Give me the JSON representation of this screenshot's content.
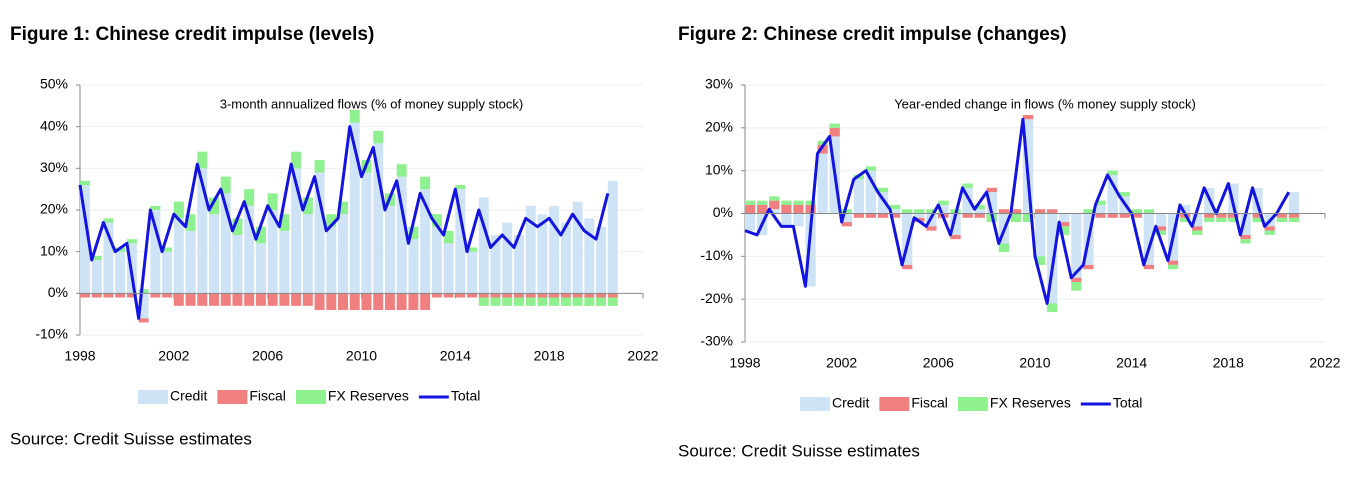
{
  "chart_data": [
    {
      "type": "bar",
      "title": "Figure 1: Chinese credit impulse (levels)",
      "annotation": "3-month annualized flows (% of money supply stock)",
      "source": "Source: Credit Suisse estimates",
      "x": [
        1998,
        1998.5,
        1999,
        1999.5,
        2000,
        2000.5,
        2001,
        2001.5,
        2002,
        2002.5,
        2003,
        2003.5,
        2004,
        2004.5,
        2005,
        2005.5,
        2006,
        2006.5,
        2007,
        2007.5,
        2008,
        2008.5,
        2009,
        2009.5,
        2010,
        2010.5,
        2011,
        2011.5,
        2012,
        2012.5,
        2013,
        2013.5,
        2014,
        2014.5,
        2015,
        2015.5,
        2016,
        2016.5,
        2017,
        2017.5,
        2018,
        2018.5,
        2019,
        2019.5,
        2020,
        2020.5
      ],
      "series": [
        {
          "name": "Credit",
          "color": "#cfe3f7",
          "values": [
            26,
            8,
            17,
            10,
            12,
            -6,
            20,
            10,
            18,
            15,
            30,
            19,
            24,
            14,
            21,
            12,
            20,
            15,
            30,
            19,
            29,
            16,
            19,
            41,
            29,
            36,
            21,
            28,
            13,
            25,
            16,
            12,
            25,
            10,
            23,
            14,
            17,
            14,
            21,
            19,
            21,
            17,
            22,
            18,
            16,
            27
          ]
        },
        {
          "name": "Fiscal",
          "color": "#f08080",
          "values": [
            -1,
            -1,
            -1,
            -1,
            -1,
            -1,
            -1,
            -1,
            -3,
            -3,
            -3,
            -3,
            -3,
            -3,
            -3,
            -3,
            -3,
            -3,
            -3,
            -3,
            -4,
            -4,
            -4,
            -4,
            -4,
            -4,
            -4,
            -4,
            -4,
            -4,
            -1,
            -1,
            -1,
            -1,
            -1,
            -1,
            -1,
            -1,
            -1,
            -1,
            -1,
            -1,
            -1,
            -1,
            -1,
            -1
          ]
        },
        {
          "name": "FX Reserves",
          "color": "#8ef08e",
          "values": [
            1,
            1,
            1,
            1,
            1,
            1,
            1,
            1,
            4,
            4,
            4,
            4,
            4,
            4,
            4,
            4,
            4,
            4,
            4,
            4,
            3,
            3,
            3,
            3,
            3,
            3,
            3,
            3,
            3,
            3,
            3,
            3,
            1,
            1,
            -2,
            -2,
            -2,
            -2,
            -2,
            -2,
            -2,
            -2,
            -2,
            -2,
            -2,
            -2
          ]
        },
        {
          "name": "Total",
          "color": "#1414e0",
          "values": [
            26,
            8,
            17,
            10,
            12,
            -6,
            20,
            10,
            19,
            16,
            31,
            20,
            25,
            15,
            22,
            13,
            21,
            16,
            31,
            20,
            28,
            15,
            18,
            40,
            28,
            35,
            20,
            27,
            12,
            24,
            18,
            14,
            25,
            10,
            20,
            11,
            14,
            11,
            18,
            16,
            18,
            14,
            19,
            15,
            13,
            24
          ]
        }
      ],
      "xlim": [
        1998,
        2022
      ],
      "xticks": [
        1998,
        2002,
        2006,
        2010,
        2014,
        2018,
        2022
      ],
      "ylim": [
        -10,
        50
      ],
      "yticks": [
        {
          "value": -10,
          "label": "-10%"
        },
        {
          "value": 0,
          "label": "0%"
        },
        {
          "value": 10,
          "label": "10%"
        },
        {
          "value": 20,
          "label": "20%"
        },
        {
          "value": 30,
          "label": "30%"
        },
        {
          "value": 40,
          "label": "40%"
        },
        {
          "value": 50,
          "label": "50%"
        }
      ],
      "grid": true
    },
    {
      "type": "bar",
      "title": "Figure 2: Chinese credit impulse (changes)",
      "annotation": "Year-ended change in flows (% money supply stock)",
      "source": "Source: Credit Suisse estimates",
      "x": [
        1998,
        1998.5,
        1999,
        1999.5,
        2000,
        2000.5,
        2001,
        2001.5,
        2002,
        2002.5,
        2003,
        2003.5,
        2004,
        2004.5,
        2005,
        2005.5,
        2006,
        2006.5,
        2007,
        2007.5,
        2008,
        2008.5,
        2009,
        2009.5,
        2010,
        2010.5,
        2011,
        2011.5,
        2012,
        2012.5,
        2013,
        2013.5,
        2014,
        2014.5,
        2015,
        2015.5,
        2016,
        2016.5,
        2017,
        2017.5,
        2018,
        2018.5,
        2019,
        2019.5,
        2020,
        2020.5
      ],
      "series": [
        {
          "name": "Credit",
          "color": "#cfe3f7",
          "values": [
            -4,
            -5,
            1,
            -3,
            -3,
            -17,
            14,
            18,
            -2,
            8,
            10,
            5,
            1,
            -12,
            -1,
            -3,
            2,
            -5,
            6,
            1,
            5,
            -7,
            0,
            22,
            -10,
            -21,
            -2,
            -15,
            -12,
            2,
            9,
            4,
            0,
            -12,
            -3,
            -11,
            2,
            -3,
            6,
            0,
            7,
            -5,
            6,
            -3,
            0,
            5
          ]
        },
        {
          "name": "Fiscal",
          "color": "#f08080",
          "values": [
            2,
            2,
            2,
            2,
            2,
            2,
            2,
            2,
            -1,
            -1,
            -1,
            -1,
            -1,
            -1,
            -1,
            -1,
            -1,
            -1,
            -1,
            -1,
            1,
            1,
            1,
            1,
            1,
            1,
            -1,
            -1,
            -1,
            -1,
            -1,
            -1,
            -1,
            -1,
            -1,
            -1,
            -1,
            -1,
            -1,
            -1,
            -1,
            -1,
            -1,
            -1,
            -1,
            -1
          ]
        },
        {
          "name": "FX Reserves",
          "color": "#8ef08e",
          "values": [
            1,
            1,
            1,
            1,
            1,
            1,
            1,
            1,
            1,
            1,
            1,
            1,
            1,
            1,
            1,
            1,
            1,
            1,
            1,
            1,
            -2,
            -2,
            -2,
            -2,
            -2,
            -2,
            -2,
            -2,
            1,
            1,
            1,
            1,
            1,
            1,
            -1,
            -1,
            -1,
            -1,
            -1,
            -1,
            -1,
            -1,
            -1,
            -1,
            -1,
            -1
          ]
        },
        {
          "name": "Total",
          "color": "#1414e0",
          "values": [
            -4,
            -5,
            1,
            -3,
            -3,
            -17,
            14,
            18,
            -2,
            8,
            10,
            5,
            1,
            -12,
            -1,
            -3,
            2,
            -5,
            6,
            1,
            5,
            -7,
            0,
            22,
            -10,
            -21,
            -2,
            -15,
            -12,
            2,
            9,
            4,
            0,
            -12,
            -3,
            -11,
            2,
            -3,
            6,
            0,
            7,
            -5,
            6,
            -3,
            0,
            5
          ]
        }
      ],
      "xlim": [
        1998,
        2022
      ],
      "xticks": [
        1998,
        2002,
        2006,
        2010,
        2014,
        2018,
        2022
      ],
      "ylim": [
        -30,
        30
      ],
      "yticks": [
        {
          "value": -30,
          "label": "-30%"
        },
        {
          "value": -20,
          "label": "-20%"
        },
        {
          "value": -10,
          "label": "-10%"
        },
        {
          "value": 0,
          "label": "0%"
        },
        {
          "value": 10,
          "label": "10%"
        },
        {
          "value": 20,
          "label": "20%"
        },
        {
          "value": 30,
          "label": "30%"
        }
      ],
      "grid": true
    }
  ]
}
